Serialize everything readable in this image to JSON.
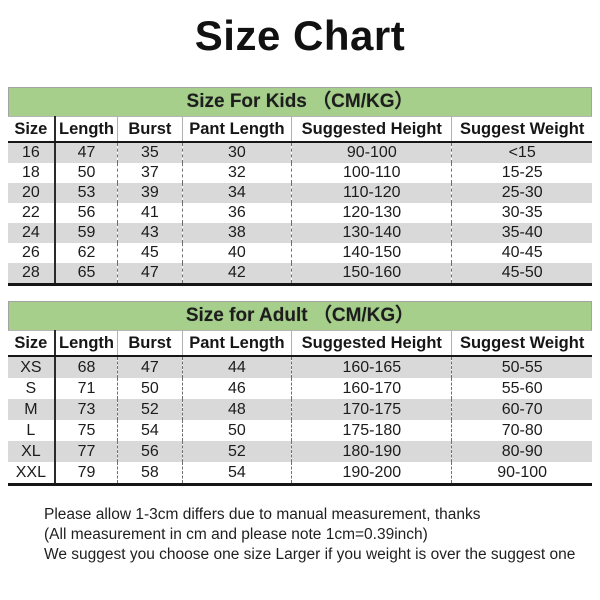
{
  "title": "Size Chart",
  "colors": {
    "banner_green": "#a6cf8c",
    "row_shade": "#d9d9d9"
  },
  "tables": [
    {
      "banner": "Size For Kids （CM/KG）",
      "headers": [
        "Size",
        "Length",
        "Burst",
        "Pant Length",
        "Suggested Height",
        "Suggest Weight"
      ],
      "rows": [
        [
          "16",
          "47",
          "35",
          "30",
          "90-100",
          "<15"
        ],
        [
          "18",
          "50",
          "37",
          "32",
          "100-110",
          "15-25"
        ],
        [
          "20",
          "53",
          "39",
          "34",
          "110-120",
          "25-30"
        ],
        [
          "22",
          "56",
          "41",
          "36",
          "120-130",
          "30-35"
        ],
        [
          "24",
          "59",
          "43",
          "38",
          "130-140",
          "35-40"
        ],
        [
          "26",
          "62",
          "45",
          "40",
          "140-150",
          "40-45"
        ],
        [
          "28",
          "65",
          "47",
          "42",
          "150-160",
          "45-50"
        ]
      ]
    },
    {
      "banner": "Size for Adult （CM/KG）",
      "headers": [
        "Size",
        "Length",
        "Burst",
        "Pant Length",
        "Suggested Height",
        "Suggest Weight"
      ],
      "rows": [
        [
          "XS",
          "68",
          "47",
          "44",
          "160-165",
          "50-55"
        ],
        [
          "S",
          "71",
          "50",
          "46",
          "160-170",
          "55-60"
        ],
        [
          "M",
          "73",
          "52",
          "48",
          "170-175",
          "60-70"
        ],
        [
          "L",
          "75",
          "54",
          "50",
          "175-180",
          "70-80"
        ],
        [
          "XL",
          "77",
          "56",
          "52",
          "180-190",
          "80-90"
        ],
        [
          "XXL",
          "79",
          "58",
          "54",
          "190-200",
          "90-100"
        ]
      ]
    }
  ],
  "notes": [
    "Please allow 1-3cm differs due to manual measurement, thanks",
    "(All measurement in cm and please note 1cm=0.39inch)",
    "We suggest you choose one size Larger if you weight is over the suggest one"
  ]
}
